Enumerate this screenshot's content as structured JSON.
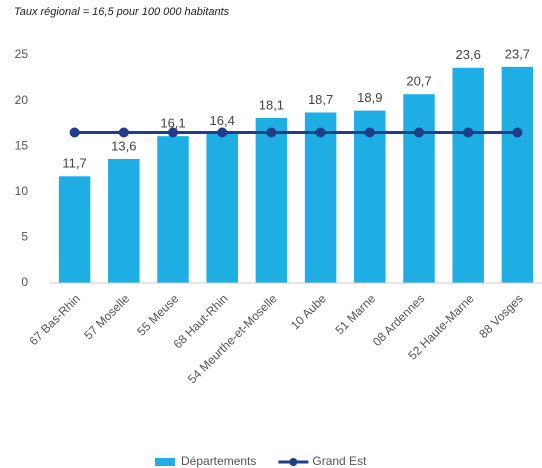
{
  "chart_data": {
    "type": "bar",
    "title": "Taux régional = 16,5 pour 100 000 habitants",
    "categories": [
      "67 Bas-Rhin",
      "57 Moselle",
      "55 Meuse",
      "68 Haut-Rhin",
      "54 Meurthe-et-Moselle",
      "10 Aube",
      "51 Marne",
      "08 Ardennes",
      "52 Haute-Marne",
      "88 Vosges"
    ],
    "series": [
      {
        "name": "Départements",
        "type": "bar",
        "color": "#1eaee4",
        "values": [
          11.7,
          13.6,
          16.1,
          16.4,
          18.1,
          18.7,
          18.9,
          20.7,
          23.6,
          23.7
        ],
        "value_labels": [
          "11,7",
          "13,6",
          "16,1",
          "16,4",
          "18,1",
          "18,7",
          "18,9",
          "20,7",
          "23,6",
          "23,7"
        ]
      },
      {
        "name": "Grand Est",
        "type": "line",
        "color": "#1f3d8a",
        "values": [
          16.5,
          16.5,
          16.5,
          16.5,
          16.5,
          16.5,
          16.5,
          16.5,
          16.5,
          16.5
        ]
      }
    ],
    "ylim": [
      0,
      25
    ],
    "yticks": [
      0,
      5,
      10,
      15,
      20,
      25
    ],
    "grid": false,
    "legend": "bottom"
  }
}
